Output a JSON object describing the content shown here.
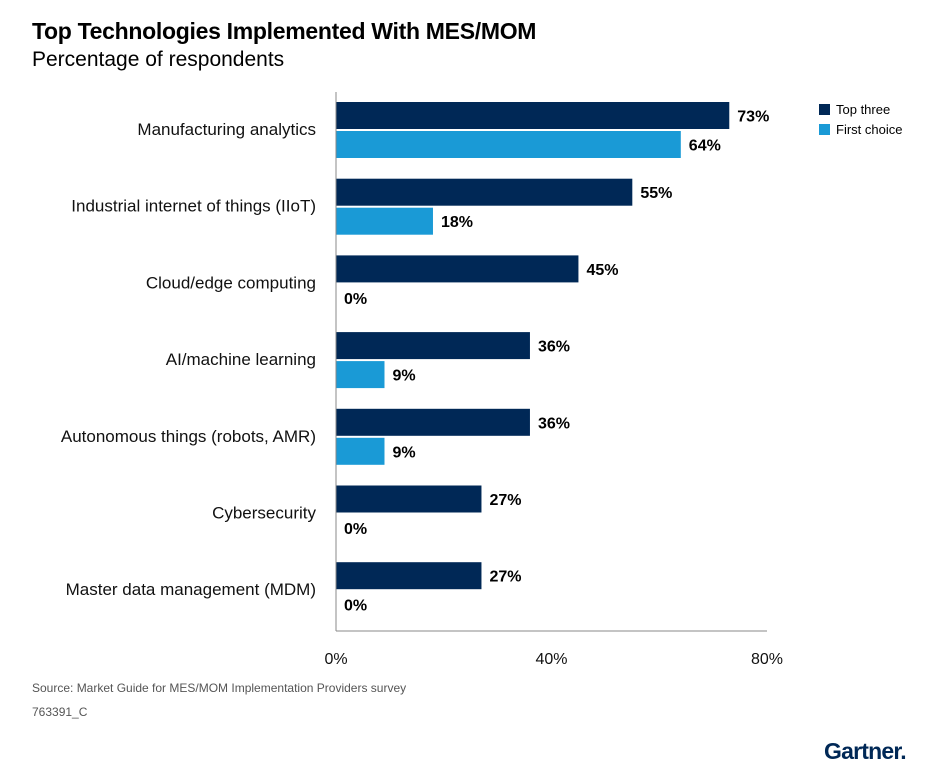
{
  "chart_data": {
    "type": "bar",
    "orientation": "horizontal",
    "title": "Top Technologies Implemented With MES/MOM",
    "subtitle": "Percentage of respondents",
    "categories": [
      "Manufacturing analytics",
      "Industrial internet of things (IIoT)",
      "Cloud/edge computing",
      "AI/machine learning",
      "Autonomous things (robots, AMR)",
      "Cybersecurity",
      "Master data management (MDM)"
    ],
    "series": [
      {
        "name": "Top three",
        "color": "#002856",
        "values": [
          73,
          55,
          45,
          36,
          36,
          27,
          27
        ],
        "labels": [
          "73%",
          "55%",
          "45%",
          "36%",
          "36%",
          "27%",
          "27%"
        ]
      },
      {
        "name": "First choice",
        "color": "#1a9ad6",
        "values": [
          64,
          18,
          0,
          9,
          9,
          0,
          0
        ],
        "labels": [
          "64%",
          "18%",
          "0%",
          "9%",
          "9%",
          "0%",
          "0%"
        ]
      }
    ],
    "xlim": [
      0,
      80
    ],
    "xticks": [
      0,
      40,
      80
    ],
    "xtick_labels": [
      "0%",
      "40%",
      "80%"
    ],
    "legend_position": "top-right",
    "grid": false
  },
  "footer": {
    "source": "Source: Market Guide for MES/MOM Implementation Providers survey",
    "doc_id": "763391_C",
    "brand": "Gartner."
  }
}
